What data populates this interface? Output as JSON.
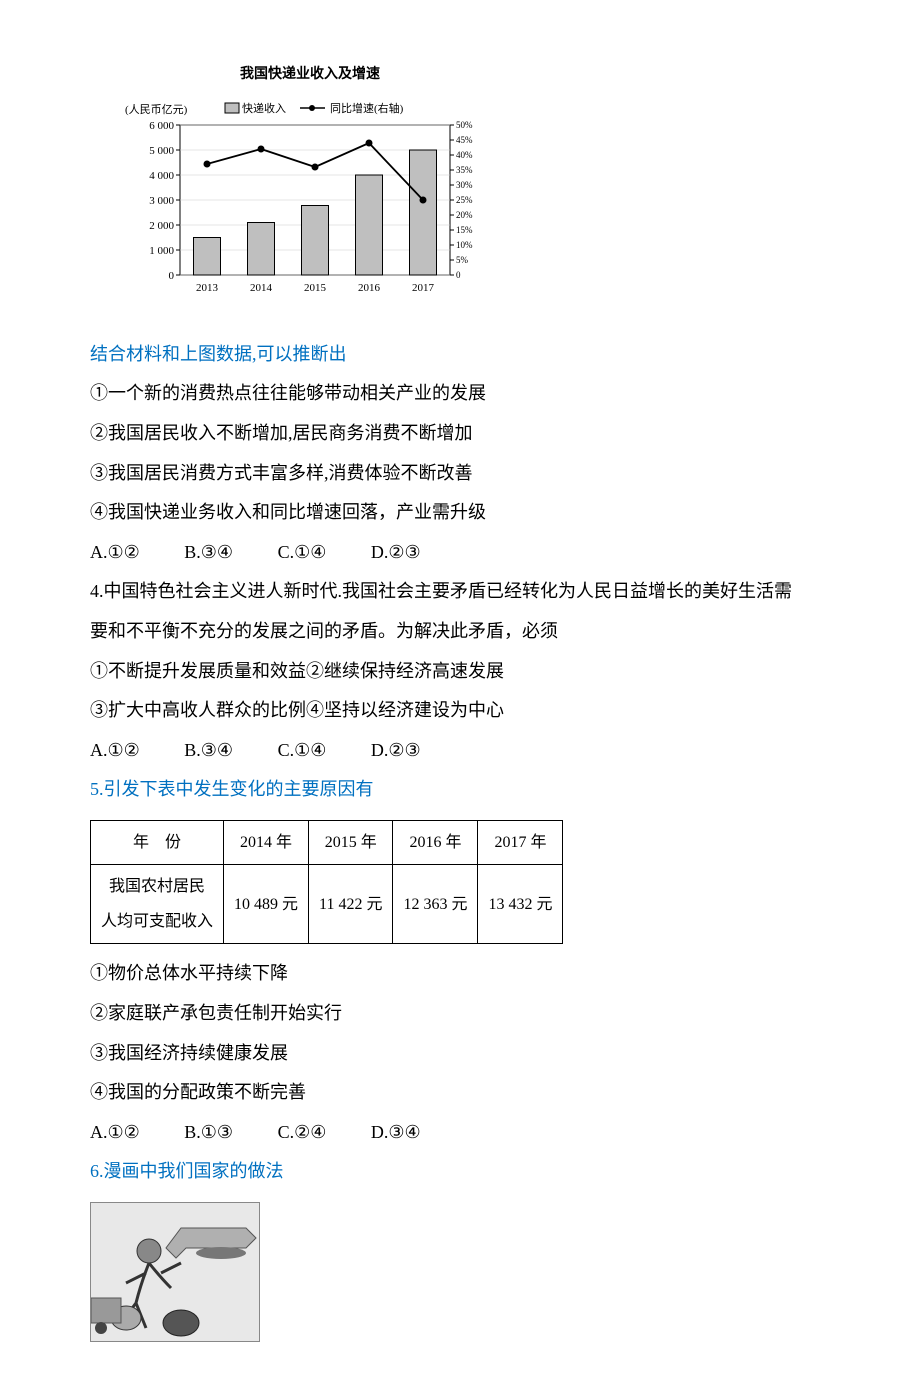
{
  "chart": {
    "title": "我国快递业收入及增速",
    "y_left_label": "(人民币亿元)",
    "legend_left": "快递收入",
    "legend_right": "同比增速(右轴)",
    "y_left": {
      "min": 0,
      "max": 6000,
      "step": 1000,
      "ticks": [
        "0",
        "1 000",
        "2 000",
        "3 000",
        "4 000",
        "5 000",
        "6 000"
      ]
    },
    "y_right": {
      "min": 0,
      "max": 50,
      "ticks": [
        "0",
        "5%",
        "10%",
        "15%",
        "20%",
        "25%",
        "30%",
        "35%",
        "40%",
        "45%",
        "50%"
      ]
    },
    "categories": [
      "2013",
      "2014",
      "2015",
      "2016",
      "2017"
    ],
    "bars": [
      1500,
      2100,
      2780,
      4000,
      5000
    ],
    "line_pct": [
      37,
      42,
      36,
      44,
      25
    ],
    "bar_color": "#bfbfbf",
    "bar_border": "#000000",
    "line_color": "#000000",
    "grid_color": "#000000",
    "bg": "#ffffff",
    "axis_fontsize": 11,
    "title_fontsize": 14
  },
  "q3_intro": "结合材料和上图数据,可以推断出",
  "q3_items": {
    "i1": "①一个新的消费热点往往能够带动相关产业的发展",
    "i2": "②我国居民收入不断增加,居民商务消费不断增加",
    "i3": "③我国居民消费方式丰富多样,消费体验不断改善",
    "i4": "④我国快递业务收入和同比增速回落，产业需升级"
  },
  "q3_opts": {
    "a": "A.①②",
    "b": "B.③④",
    "c": "C.①④",
    "d": "D.②③"
  },
  "q4_l1": "4.中国特色社会主义进人新时代.我国社会主要矛盾已经转化为人民日益增长的美好生活需",
  "q4_l2": "要和不平衡不充分的发展之间的矛盾。为解决此矛盾，必须",
  "q4_items": {
    "i1": "①不断提升发展质量和效益②继续保持经济高速发展",
    "i2": "③扩大中高收人群众的比例④坚持以经济建设为中心"
  },
  "q4_opts": {
    "a": "A.①②",
    "b": "B.③④",
    "c": "C.①④",
    "d": "D.②③"
  },
  "q5_title": "5.引发下表中发生变化的主要原因有",
  "table": {
    "header_label": "年　份",
    "row_label_l1": "我国农村居民",
    "row_label_l2": "人均可支配收入",
    "cols": [
      "2014 年",
      "2015 年",
      "2016 年",
      "2017 年"
    ],
    "vals": [
      "10 489 元",
      "11 422 元",
      "12 363 元",
      "13 432 元"
    ]
  },
  "q5_items": {
    "i1": "①物价总体水平持续下降",
    "i2": "②家庭联产承包责任制开始实行",
    "i3": "③我国经济持续健康发展",
    "i4": "④我国的分配政策不断完善"
  },
  "q5_opts": {
    "a": "A.①②",
    "b": "B.①③",
    "c": "C.②④",
    "d": "D.③④"
  },
  "q6_title": "6.漫画中我们国家的做法"
}
